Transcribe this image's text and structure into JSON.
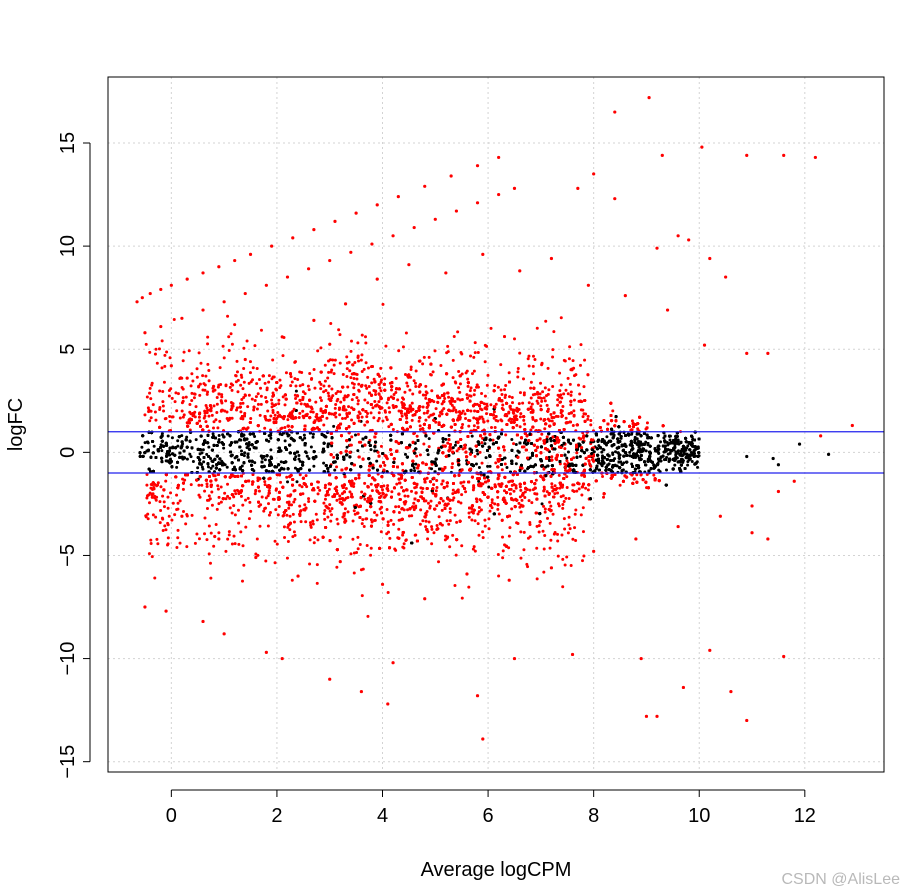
{
  "chart_data": {
    "type": "scatter",
    "title": "",
    "xlabel": "Average logCPM",
    "ylabel": "logFC",
    "xlim": [
      -1.2,
      13.5
    ],
    "ylim": [
      -15.5,
      18.2
    ],
    "xticks": [
      0,
      2,
      4,
      6,
      8,
      10,
      12
    ],
    "yticks": [
      -15,
      -10,
      -5,
      0,
      5,
      10,
      15
    ],
    "grid": true,
    "hlines": [
      1,
      -1
    ],
    "colors": {
      "significant": "#ff0000",
      "not_significant": "#000000",
      "threshold_lines": "#2222ee",
      "grid": "#d3d3d3"
    },
    "series": [
      {
        "status": "significant",
        "color": "#ff0000",
        "points": [
          [
            -0.65,
            7.3
          ],
          [
            -0.55,
            7.5
          ],
          [
            -0.4,
            7.7
          ],
          [
            -0.2,
            7.9
          ],
          [
            0.0,
            8.1
          ],
          [
            0.3,
            8.4
          ],
          [
            0.6,
            8.7
          ],
          [
            0.9,
            9.0
          ],
          [
            1.2,
            9.3
          ],
          [
            1.5,
            9.6
          ],
          [
            1.9,
            10.0
          ],
          [
            2.3,
            10.4
          ],
          [
            2.7,
            10.8
          ],
          [
            3.1,
            11.2
          ],
          [
            3.5,
            11.6
          ],
          [
            3.9,
            12.0
          ],
          [
            4.3,
            12.4
          ],
          [
            4.8,
            12.9
          ],
          [
            5.3,
            13.4
          ],
          [
            5.8,
            13.9
          ],
          [
            6.2,
            14.3
          ],
          [
            -0.5,
            5.8
          ],
          [
            -0.2,
            6.1
          ],
          [
            0.2,
            6.5
          ],
          [
            0.6,
            6.9
          ],
          [
            1.0,
            7.3
          ],
          [
            1.4,
            7.7
          ],
          [
            1.8,
            8.1
          ],
          [
            2.2,
            8.5
          ],
          [
            2.6,
            8.9
          ],
          [
            3.0,
            9.3
          ],
          [
            3.4,
            9.7
          ],
          [
            3.8,
            10.1
          ],
          [
            4.2,
            10.5
          ],
          [
            4.6,
            10.9
          ],
          [
            5.0,
            11.3
          ],
          [
            5.4,
            11.7
          ],
          [
            5.8,
            12.1
          ],
          [
            6.2,
            12.5
          ],
          [
            6.5,
            12.8
          ],
          [
            8.4,
            16.5
          ],
          [
            9.05,
            17.2
          ],
          [
            9.3,
            14.4
          ],
          [
            10.05,
            14.8
          ],
          [
            10.9,
            14.4
          ],
          [
            11.6,
            14.4
          ],
          [
            12.2,
            14.3
          ],
          [
            8.0,
            13.5
          ],
          [
            7.7,
            12.8
          ],
          [
            8.4,
            12.3
          ],
          [
            9.6,
            10.5
          ],
          [
            9.8,
            10.3
          ],
          [
            10.2,
            9.4
          ],
          [
            9.2,
            9.9
          ],
          [
            0.0,
            4.2
          ],
          [
            0.3,
            3.6
          ],
          [
            0.8,
            3.2
          ],
          [
            1.4,
            4.5
          ],
          [
            2.1,
            5.6
          ],
          [
            2.7,
            6.4
          ],
          [
            3.3,
            7.2
          ],
          [
            3.9,
            8.4
          ],
          [
            4.5,
            9.1
          ],
          [
            5.2,
            8.7
          ],
          [
            5.9,
            9.6
          ],
          [
            6.6,
            8.8
          ],
          [
            7.2,
            9.4
          ],
          [
            7.9,
            8.1
          ],
          [
            8.6,
            7.6
          ],
          [
            9.4,
            6.9
          ],
          [
            10.1,
            5.2
          ],
          [
            10.9,
            4.8
          ],
          [
            11.3,
            4.8
          ],
          [
            10.5,
            8.5
          ],
          [
            -0.5,
            -7.5
          ],
          [
            -0.1,
            -7.7
          ],
          [
            0.6,
            -8.2
          ],
          [
            1.0,
            -8.8
          ],
          [
            1.8,
            -9.7
          ],
          [
            2.1,
            -10.0
          ],
          [
            3.0,
            -11.0
          ],
          [
            3.6,
            -11.6
          ],
          [
            4.1,
            -12.2
          ],
          [
            4.2,
            -10.2
          ],
          [
            5.8,
            -11.8
          ],
          [
            5.9,
            -13.9
          ],
          [
            6.5,
            -10.0
          ],
          [
            7.6,
            -9.8
          ],
          [
            8.9,
            -10.0
          ],
          [
            9.0,
            -12.8
          ],
          [
            9.2,
            -12.8
          ],
          [
            9.7,
            -11.4
          ],
          [
            10.6,
            -11.6
          ],
          [
            10.9,
            -13.0
          ],
          [
            11.6,
            -9.9
          ],
          [
            10.2,
            -9.6
          ],
          [
            11.8,
            -1.4
          ],
          [
            12.3,
            0.8
          ],
          [
            12.9,
            1.3
          ],
          [
            11.3,
            -4.2
          ],
          [
            11.0,
            -3.9
          ],
          [
            0.2,
            -3.1
          ],
          [
            0.9,
            -4.2
          ],
          [
            1.6,
            -5.1
          ],
          [
            2.4,
            -6.0
          ],
          [
            3.2,
            -5.3
          ],
          [
            4.0,
            -6.4
          ],
          [
            4.8,
            -7.1
          ],
          [
            5.6,
            -5.9
          ],
          [
            6.4,
            -6.2
          ],
          [
            7.2,
            -5.6
          ],
          [
            8.0,
            -4.8
          ],
          [
            8.8,
            -4.2
          ],
          [
            9.6,
            -3.6
          ],
          [
            10.4,
            -3.1
          ],
          [
            11.0,
            -2.6
          ],
          [
            11.5,
            -1.9
          ]
        ]
      },
      {
        "status": "not_significant",
        "color": "#000000",
        "points": []
      }
    ]
  },
  "watermark": "CSDN @AlisLee"
}
